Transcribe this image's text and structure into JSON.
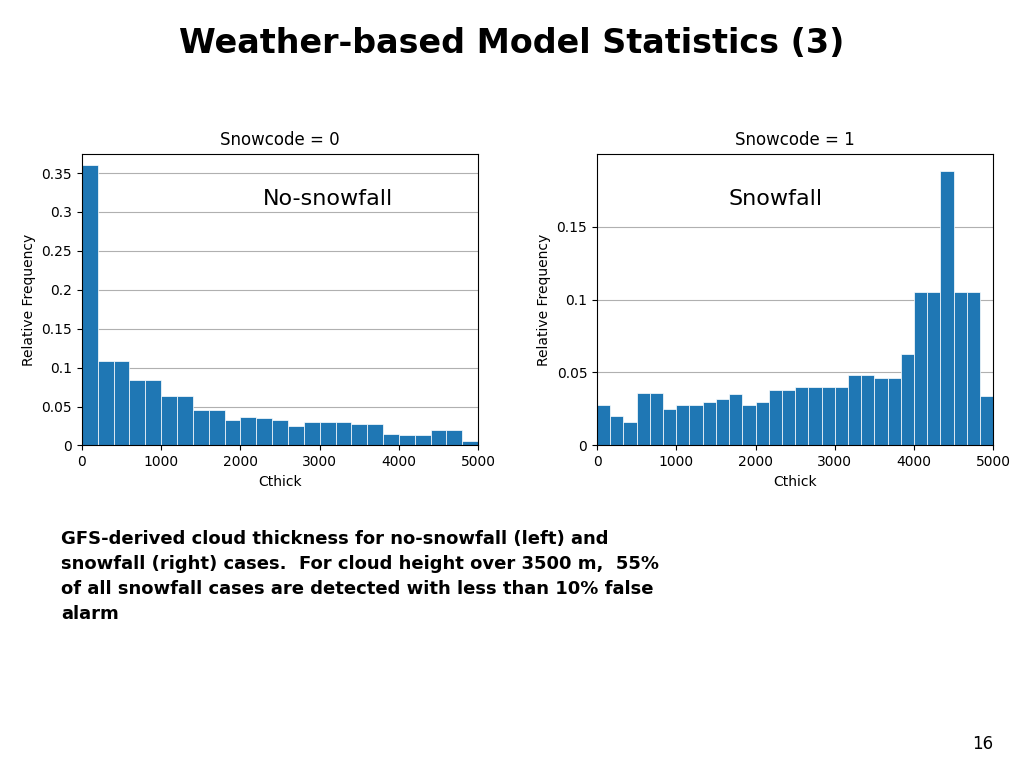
{
  "title": "Weather-based Model Statistics (3)",
  "caption": "GFS-derived cloud thickness for no-snowfall (left) and\nsnowfall (right) cases.  For cloud height over 3500 m,  55%\nof all snowfall cases are detected with less than 10% false\nalarm",
  "page_number": "16",
  "chart_data": [
    {
      "type": "histogram",
      "title": "Snowcode = 0",
      "annotations": [
        "No-snowfall"
      ],
      "x_label": "Cthick",
      "y_label": "Relative Frequency",
      "bins": [
        0,
        200,
        400,
        600,
        800,
        1000,
        1200,
        1400,
        1600,
        1800,
        2000,
        2200,
        2400,
        2600,
        2800,
        3000,
        3200,
        3400,
        3600,
        3800,
        4000,
        4200,
        4400,
        4600,
        4800,
        5000
      ],
      "counts": [
        0.36,
        0.108,
        0.108,
        0.084,
        0.084,
        0.063,
        0.063,
        0.046,
        0.046,
        0.033,
        0.037,
        0.035,
        0.033,
        0.025,
        0.03,
        0.03,
        0.03,
        0.027,
        0.027,
        0.015,
        0.013,
        0.013,
        0.02,
        0.02,
        0.006
      ],
      "xlim": [
        0,
        5000
      ],
      "ylim": [
        0,
        0.375
      ],
      "xticks": [
        0,
        1000,
        2000,
        3000,
        4000,
        5000
      ],
      "yticks": [
        0,
        0.05,
        0.1,
        0.15,
        0.2,
        0.25,
        0.3,
        0.35
      ],
      "grid": "y"
    },
    {
      "type": "histogram",
      "title": "Snowcode = 1",
      "annotations": [
        "Snowfall"
      ],
      "x_label": "Cthick",
      "y_label": "Relative Frequency",
      "bins": [
        0,
        166.66666666666666,
        333.3333333333333,
        500,
        666.6666666666666,
        833.3333333333333,
        1000,
        1166.6666666666667,
        1333.3333333333333,
        1500,
        1666.6666666666667,
        1833.3333333333333,
        2000,
        2166.6666666666665,
        2333.3333333333335,
        2500,
        2666.6666666666665,
        2833.3333333333335,
        3000,
        3166.6666666666665,
        3333.3333333333335,
        3500,
        3666.6666666666665,
        3833.3333333333335,
        4000,
        4166.666666666667,
        4333.333333333333,
        4500,
        4666.666666666667,
        4833.333333333333,
        5000
      ],
      "counts": [
        0.028,
        0.02,
        0.016,
        0.036,
        0.036,
        0.025,
        0.028,
        0.028,
        0.03,
        0.032,
        0.035,
        0.028,
        0.03,
        0.038,
        0.038,
        0.04,
        0.04,
        0.04,
        0.04,
        0.048,
        0.048,
        0.046,
        0.046,
        0.063,
        0.105,
        0.105,
        0.188,
        0.105,
        0.105,
        0.034
      ],
      "xlim": [
        0,
        5000
      ],
      "ylim": [
        0,
        0.2
      ],
      "xticks": [
        0,
        1000,
        2000,
        3000,
        4000,
        5000
      ],
      "yticks": [
        0,
        0.05,
        0.1,
        0.15
      ],
      "grid": "y"
    }
  ]
}
